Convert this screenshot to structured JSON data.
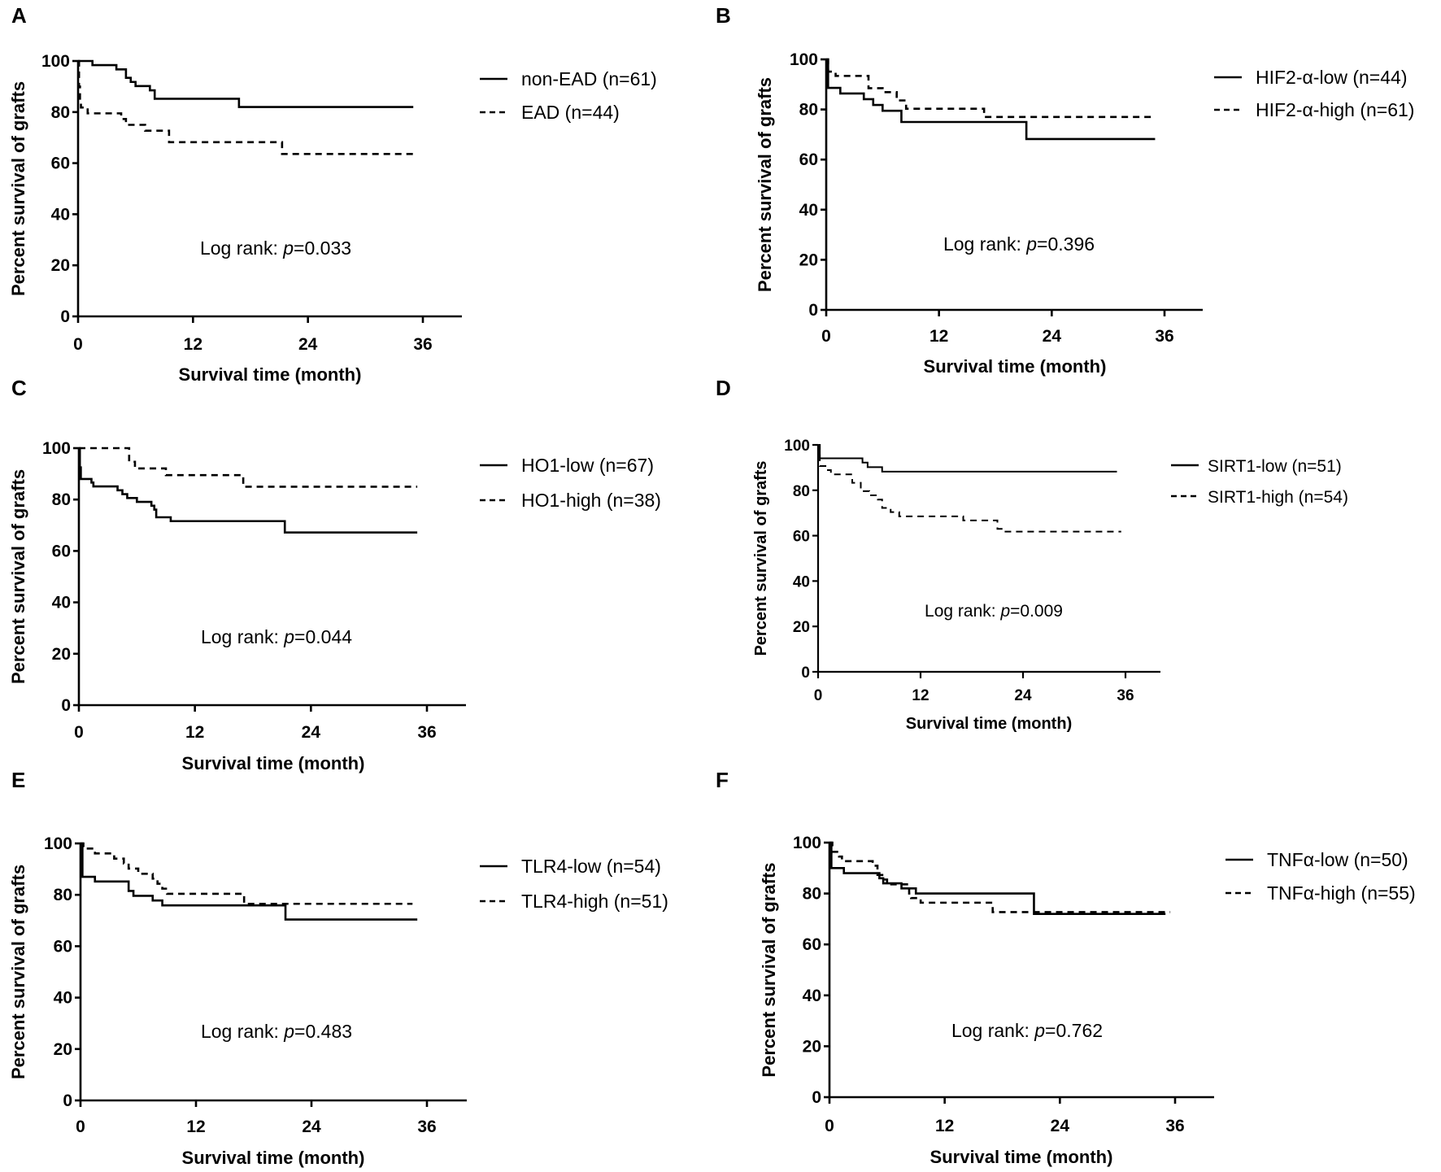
{
  "chart_data": [
    {
      "panel": "A",
      "type": "line",
      "xlabel": "Survival time (month)",
      "ylabel": "Percent survival of grafts",
      "xlim": [
        0,
        36
      ],
      "ylim": [
        0,
        100
      ],
      "xticks": [
        "0",
        "12",
        "24",
        "36"
      ],
      "yticks": [
        "0",
        "20",
        "40",
        "60",
        "80",
        "100"
      ],
      "legend_position": "right",
      "logrank": {
        "prefix": "Log rank: ",
        "p_symbol": "p",
        "value": "=0.033"
      },
      "series": [
        {
          "name": "non-EAD (n=61)",
          "style": "solid",
          "points": [
            [
              0,
              100
            ],
            [
              1.5,
              98.4
            ],
            [
              4,
              96.7
            ],
            [
              5,
              93.4
            ],
            [
              5.5,
              91.8
            ],
            [
              6,
              90.2
            ],
            [
              7.5,
              88.5
            ],
            [
              8,
              85.2
            ],
            [
              16.8,
              82
            ],
            [
              35,
              82
            ]
          ]
        },
        {
          "name": "EAD (n=44)",
          "style": "dashed",
          "points": [
            [
              0,
              100
            ],
            [
              0.1,
              90
            ],
            [
              0.2,
              84
            ],
            [
              0.3,
              81.8
            ],
            [
              1,
              79.5
            ],
            [
              4.5,
              77.3
            ],
            [
              5,
              75
            ],
            [
              7,
              72.7
            ],
            [
              9.5,
              68.2
            ],
            [
              21.3,
              63.6
            ],
            [
              35,
              63.6
            ]
          ]
        }
      ]
    },
    {
      "panel": "B",
      "type": "line",
      "xlabel": "Survival time (month)",
      "ylabel": "Percent survival of grafts",
      "xlim": [
        0,
        36
      ],
      "ylim": [
        0,
        100
      ],
      "xticks": [
        "0",
        "12",
        "24",
        "36"
      ],
      "yticks": [
        "0",
        "20",
        "40",
        "60",
        "80",
        "100"
      ],
      "legend_position": "right",
      "logrank": {
        "prefix": "Log rank: ",
        "p_symbol": "p",
        "value": "=0.396"
      },
      "series": [
        {
          "name": "HIF2-α-low (n=44)",
          "style": "solid",
          "points": [
            [
              0,
              100
            ],
            [
              0.2,
              88.6
            ],
            [
              1.5,
              86.4
            ],
            [
              4,
              84.1
            ],
            [
              5,
              81.8
            ],
            [
              6,
              79.5
            ],
            [
              8,
              75
            ],
            [
              21.3,
              68.2
            ],
            [
              35,
              68.2
            ]
          ]
        },
        {
          "name": "HIF2-α-high (n=61)",
          "style": "dashed",
          "points": [
            [
              0,
              100
            ],
            [
              0.2,
              95.1
            ],
            [
              1,
              93.4
            ],
            [
              4.5,
              88.5
            ],
            [
              6,
              86.9
            ],
            [
              7.5,
              83.6
            ],
            [
              8.5,
              80.3
            ],
            [
              16.8,
              77
            ],
            [
              35,
              77
            ]
          ]
        }
      ]
    },
    {
      "panel": "C",
      "type": "line",
      "xlabel": "Survival time (month)",
      "ylabel": "Percent survival of grafts",
      "xlim": [
        0,
        36
      ],
      "ylim": [
        0,
        100
      ],
      "xticks": [
        "0",
        "12",
        "24",
        "36"
      ],
      "yticks": [
        "0",
        "20",
        "40",
        "60",
        "80",
        "100"
      ],
      "legend_position": "right",
      "logrank": {
        "prefix": "Log rank: ",
        "p_symbol": "p",
        "value": "=0.044"
      },
      "series": [
        {
          "name": "HO1-low (n=67)",
          "style": "solid",
          "points": [
            [
              0,
              100
            ],
            [
              0.1,
              92.5
            ],
            [
              0.2,
              88
            ],
            [
              1.3,
              86.6
            ],
            [
              1.5,
              85.1
            ],
            [
              4,
              83.6
            ],
            [
              4.5,
              82.1
            ],
            [
              5,
              80.6
            ],
            [
              6,
              79.1
            ],
            [
              7.5,
              77.6
            ],
            [
              7.8,
              76.1
            ],
            [
              8,
              73.1
            ],
            [
              9.5,
              71.6
            ],
            [
              21.3,
              67.2
            ],
            [
              35,
              67.2
            ]
          ]
        },
        {
          "name": "HO1-high (n=38)",
          "style": "dashed",
          "points": [
            [
              0,
              100
            ],
            [
              5.2,
              94.7
            ],
            [
              5.8,
              92.1
            ],
            [
              9,
              89.5
            ],
            [
              17,
              85
            ],
            [
              35,
              85
            ]
          ]
        }
      ]
    },
    {
      "panel": "D",
      "type": "line",
      "xlabel": "Survival time (month)",
      "ylabel": "Percent survival of grafts",
      "xlim": [
        0,
        36
      ],
      "ylim": [
        0,
        100
      ],
      "xticks": [
        "0",
        "12",
        "24",
        "36"
      ],
      "yticks": [
        "0",
        "20",
        "40",
        "60",
        "80",
        "100"
      ],
      "legend_position": "right",
      "logrank": {
        "prefix": "Log rank: ",
        "p_symbol": "p",
        "value": "=0.009"
      },
      "series": [
        {
          "name": "SIRT1-low (n=51)",
          "style": "solid",
          "points": [
            [
              0,
              100
            ],
            [
              0.2,
              94.1
            ],
            [
              5.2,
              92.2
            ],
            [
              5.8,
              90.2
            ],
            [
              7.5,
              88.2
            ],
            [
              35,
              88.2
            ]
          ]
        },
        {
          "name": "SIRT1-high (n=54)",
          "style": "dashed",
          "points": [
            [
              0,
              100
            ],
            [
              0.2,
              90.7
            ],
            [
              1,
              88.9
            ],
            [
              1.5,
              87
            ],
            [
              4,
              83.3
            ],
            [
              5,
              79.6
            ],
            [
              6,
              77.8
            ],
            [
              7,
              75.9
            ],
            [
              7.5,
              72.2
            ],
            [
              8.5,
              70.4
            ],
            [
              9.5,
              68.5
            ],
            [
              17,
              66.7
            ],
            [
              21,
              63
            ],
            [
              21.5,
              61.8
            ],
            [
              35.5,
              61.8
            ]
          ]
        }
      ]
    },
    {
      "panel": "E",
      "type": "line",
      "xlabel": "Survival time (month)",
      "ylabel": "Percent survival of grafts",
      "xlim": [
        0,
        36
      ],
      "ylim": [
        0,
        100
      ],
      "xticks": [
        "0",
        "12",
        "24",
        "36"
      ],
      "yticks": [
        "0",
        "20",
        "40",
        "60",
        "80",
        "100"
      ],
      "legend_position": "right",
      "logrank": {
        "prefix": "Log rank: ",
        "p_symbol": "p",
        "value": "=0.483"
      },
      "series": [
        {
          "name": "TLR4-low (n=54)",
          "style": "solid",
          "points": [
            [
              0,
              100
            ],
            [
              0.2,
              87
            ],
            [
              1.5,
              85.2
            ],
            [
              5,
              81.5
            ],
            [
              5.5,
              79.6
            ],
            [
              7.5,
              77.8
            ],
            [
              8.5,
              75.9
            ],
            [
              21.3,
              70.4
            ],
            [
              35,
              70.4
            ]
          ]
        },
        {
          "name": "TLR4-high (n=51)",
          "style": "dashed",
          "points": [
            [
              0,
              100
            ],
            [
              0.3,
              98
            ],
            [
              1.5,
              96.1
            ],
            [
              3.5,
              94.1
            ],
            [
              4.5,
              92.2
            ],
            [
              5,
              90.2
            ],
            [
              6,
              88.2
            ],
            [
              7.5,
              86.3
            ],
            [
              8,
              84.3
            ],
            [
              8.5,
              82.4
            ],
            [
              9,
              80.4
            ],
            [
              17,
              76.5
            ],
            [
              34.5,
              76.5
            ]
          ]
        }
      ]
    },
    {
      "panel": "F",
      "type": "line",
      "xlabel": "Survival time (month)",
      "ylabel": "Percent survival of grafts",
      "xlim": [
        0,
        36
      ],
      "ylim": [
        0,
        100
      ],
      "xticks": [
        "0",
        "12",
        "24",
        "36"
      ],
      "yticks": [
        "0",
        "20",
        "40",
        "60",
        "80",
        "100"
      ],
      "legend_position": "right",
      "logrank": {
        "prefix": "Log rank: ",
        "p_symbol": "p",
        "value": "=0.762"
      },
      "series": [
        {
          "name": "TNFα-low (n=50)",
          "style": "solid",
          "points": [
            [
              0,
              100
            ],
            [
              0.2,
              90
            ],
            [
              1.5,
              88
            ],
            [
              5.2,
              86
            ],
            [
              5.6,
              84
            ],
            [
              7.5,
              82
            ],
            [
              9,
              80
            ],
            [
              21.3,
              72
            ],
            [
              35,
              72
            ]
          ]
        },
        {
          "name": "TNFα-high (n=55)",
          "style": "dashed",
          "points": [
            [
              0,
              100
            ],
            [
              0.3,
              96.4
            ],
            [
              1,
              94.5
            ],
            [
              1.3,
              92.7
            ],
            [
              4.5,
              90.9
            ],
            [
              5,
              87.3
            ],
            [
              5.5,
              85.5
            ],
            [
              6,
              83.6
            ],
            [
              8.3,
              80
            ],
            [
              8.5,
              78.2
            ],
            [
              9.5,
              76.4
            ],
            [
              17,
              72.7
            ],
            [
              35.5,
              72.7
            ]
          ]
        }
      ]
    }
  ]
}
